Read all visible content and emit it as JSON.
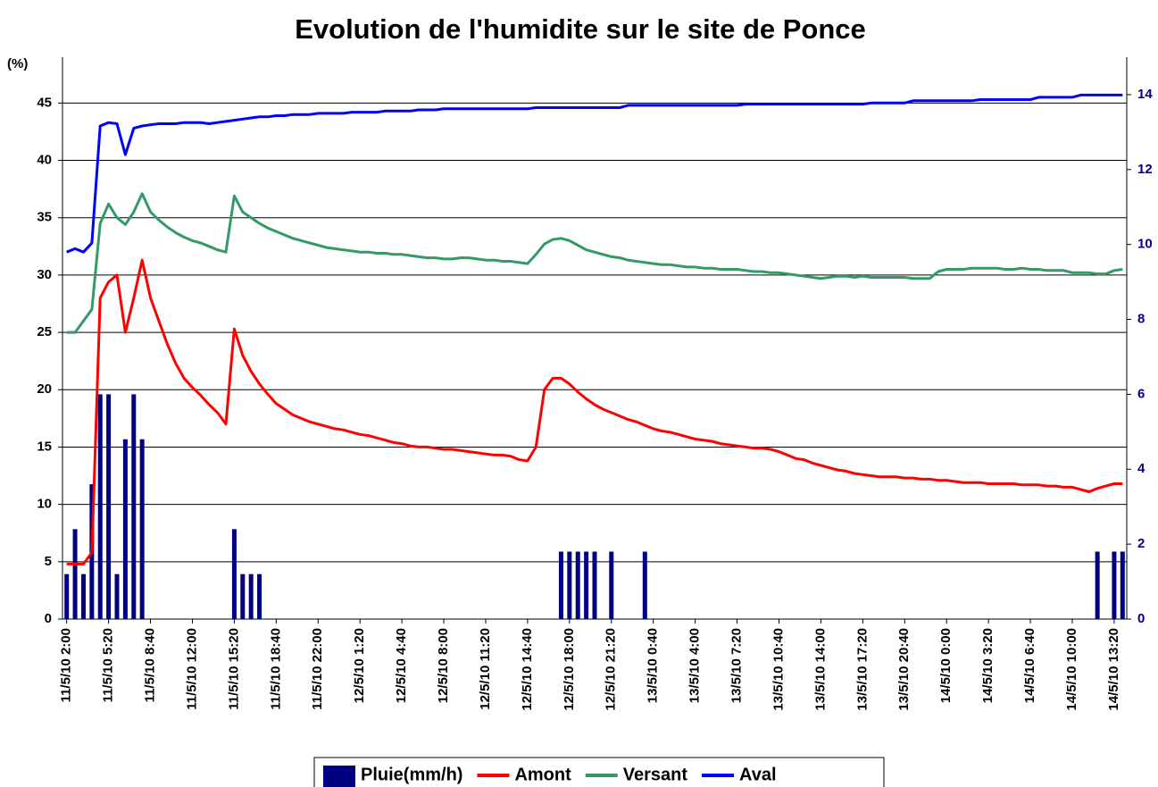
{
  "chart_data": {
    "type": "line",
    "title": "Evolution de l'humidite sur le site de Ponce",
    "y_label": "(%)",
    "categories": [
      "11/5/10 2:00",
      null,
      null,
      null,
      null,
      "11/5/10 5:20",
      null,
      null,
      null,
      null,
      "11/5/10 8:40",
      null,
      null,
      null,
      null,
      "11/5/10 12:00",
      null,
      null,
      null,
      null,
      "11/5/10 15:20",
      null,
      null,
      null,
      null,
      "11/5/10 18:40",
      null,
      null,
      null,
      null,
      "11/5/10 22:00",
      null,
      null,
      null,
      null,
      "12/5/10 1:20",
      null,
      null,
      null,
      null,
      "12/5/10 4:40",
      null,
      null,
      null,
      null,
      "12/5/10 8:00",
      null,
      null,
      null,
      null,
      "12/5/10 11:20",
      null,
      null,
      null,
      null,
      "12/5/10 14:40",
      null,
      null,
      null,
      null,
      "12/5/10 18:00",
      null,
      null,
      null,
      null,
      "12/5/10 21:20",
      null,
      null,
      null,
      null,
      "13/5/10 0:40",
      null,
      null,
      null,
      null,
      "13/5/10 4:00",
      null,
      null,
      null,
      null,
      "13/5/10 7:20",
      null,
      null,
      null,
      null,
      "13/5/10 10:40",
      null,
      null,
      null,
      null,
      "13/5/10 14:00",
      null,
      null,
      null,
      null,
      "13/5/10 17:20",
      null,
      null,
      null,
      null,
      "13/5/10 20:40",
      null,
      null,
      null,
      null,
      "14/5/10 0:00",
      null,
      null,
      null,
      null,
      "14/5/10 3:20",
      null,
      null,
      null,
      null,
      "14/5/10 6:40",
      null,
      null,
      null,
      null,
      "14/5/10 10:00",
      null,
      null,
      null,
      null,
      "14/5/10 13:20",
      null
    ],
    "ylim": [
      0,
      49
    ],
    "yticks": [
      0,
      5,
      10,
      15,
      20,
      25,
      30,
      35,
      40,
      45
    ],
    "y2lim": [
      0,
      15
    ],
    "y2ticks": [
      0,
      2,
      4,
      6,
      8,
      10,
      12,
      14
    ],
    "grid": true,
    "legend": "bottom",
    "series": [
      {
        "name": "Pluie(mm/h)",
        "type": "bar",
        "axis": "y2",
        "color": "#000080",
        "values": [
          1.2,
          2.4,
          1.2,
          3.6,
          6,
          6,
          1.2,
          4.8,
          6,
          4.8,
          0,
          0,
          0,
          0,
          0,
          0,
          0,
          0,
          0,
          0,
          2.4,
          1.2,
          1.2,
          1.2,
          0,
          0,
          0,
          0,
          0,
          0,
          0,
          0,
          0,
          0,
          0,
          0,
          0,
          0,
          0,
          0,
          0,
          0,
          0,
          0,
          0,
          0,
          0,
          0,
          0,
          0,
          0,
          0,
          0,
          0,
          0,
          0,
          0,
          0,
          0,
          1.8,
          1.8,
          1.8,
          1.8,
          1.8,
          0,
          1.8,
          0,
          0,
          0,
          1.8,
          0,
          0,
          0,
          0,
          0,
          0,
          0,
          0,
          0,
          0,
          0,
          0,
          0,
          0,
          0,
          0,
          0,
          0,
          0,
          0,
          0,
          0,
          0,
          0,
          0,
          0,
          0,
          0,
          0,
          0,
          0,
          0,
          0,
          0,
          0,
          0,
          0,
          0,
          0,
          0,
          0,
          0,
          0,
          0,
          0,
          0,
          0,
          0,
          0,
          0,
          0,
          0,
          0,
          1.8,
          0,
          1.8,
          1.8
        ]
      },
      {
        "name": "Amont",
        "color": "#ff0000",
        "values": [
          4.8,
          4.8,
          4.8,
          5.8,
          28,
          29.4,
          30,
          25,
          28,
          31.3,
          28,
          26,
          24,
          22.3,
          21,
          20.2,
          19.5,
          18.7,
          18,
          17,
          25.3,
          23,
          21.6,
          20.5,
          19.6,
          18.8,
          18.3,
          17.8,
          17.5,
          17.2,
          17,
          16.8,
          16.6,
          16.5,
          16.3,
          16.1,
          16,
          15.8,
          15.6,
          15.4,
          15.3,
          15.1,
          15,
          15,
          14.9,
          14.8,
          14.8,
          14.7,
          14.6,
          14.5,
          14.4,
          14.3,
          14.3,
          14.2,
          13.9,
          13.8,
          15,
          20,
          21,
          21,
          20.5,
          19.8,
          19.2,
          18.7,
          18.3,
          18,
          17.7,
          17.4,
          17.2,
          16.9,
          16.6,
          16.4,
          16.3,
          16.1,
          15.9,
          15.7,
          15.6,
          15.5,
          15.3,
          15.2,
          15.1,
          15,
          14.9,
          14.9,
          14.8,
          14.6,
          14.3,
          14,
          13.9,
          13.6,
          13.4,
          13.2,
          13,
          12.9,
          12.7,
          12.6,
          12.5,
          12.4,
          12.4,
          12.4,
          12.3,
          12.3,
          12.2,
          12.2,
          12.1,
          12.1,
          12,
          11.9,
          11.9,
          11.9,
          11.8,
          11.8,
          11.8,
          11.8,
          11.7,
          11.7,
          11.7,
          11.6,
          11.6,
          11.5,
          11.5,
          11.3,
          11.1,
          11.4,
          11.6,
          11.8,
          11.8
        ]
      },
      {
        "name": "Versant",
        "color": "#339966",
        "values": [
          25,
          25,
          26,
          27,
          34.5,
          36.2,
          35,
          34.4,
          35.5,
          37.1,
          35.5,
          34.8,
          34.2,
          33.7,
          33.3,
          33,
          32.8,
          32.5,
          32.2,
          32,
          36.9,
          35.5,
          35,
          34.5,
          34.1,
          33.8,
          33.5,
          33.2,
          33,
          32.8,
          32.6,
          32.4,
          32.3,
          32.2,
          32.1,
          32,
          32,
          31.9,
          31.9,
          31.8,
          31.8,
          31.7,
          31.6,
          31.5,
          31.5,
          31.4,
          31.4,
          31.5,
          31.5,
          31.4,
          31.3,
          31.3,
          31.2,
          31.2,
          31.1,
          31,
          31.8,
          32.7,
          33.1,
          33.2,
          33,
          32.6,
          32.2,
          32,
          31.8,
          31.6,
          31.5,
          31.3,
          31.2,
          31.1,
          31,
          30.9,
          30.9,
          30.8,
          30.7,
          30.7,
          30.6,
          30.6,
          30.5,
          30.5,
          30.5,
          30.4,
          30.3,
          30.3,
          30.2,
          30.2,
          30.1,
          30,
          29.9,
          29.8,
          29.7,
          29.8,
          29.9,
          29.9,
          29.8,
          29.9,
          29.8,
          29.8,
          29.8,
          29.8,
          29.8,
          29.7,
          29.7,
          29.7,
          30.3,
          30.5,
          30.5,
          30.5,
          30.6,
          30.6,
          30.6,
          30.6,
          30.5,
          30.5,
          30.6,
          30.5,
          30.5,
          30.4,
          30.4,
          30.4,
          30.2,
          30.2,
          30.2,
          30.1,
          30.1,
          30.4,
          30.5
        ]
      },
      {
        "name": "Aval",
        "color": "#0000ff",
        "values": [
          32,
          32.3,
          32,
          32.8,
          43,
          43.3,
          43.2,
          40.5,
          42.8,
          43,
          43.1,
          43.2,
          43.2,
          43.2,
          43.3,
          43.3,
          43.3,
          43.2,
          43.3,
          43.4,
          43.5,
          43.6,
          43.7,
          43.8,
          43.8,
          43.9,
          43.9,
          44,
          44,
          44,
          44.1,
          44.1,
          44.1,
          44.1,
          44.2,
          44.2,
          44.2,
          44.2,
          44.3,
          44.3,
          44.3,
          44.3,
          44.4,
          44.4,
          44.4,
          44.5,
          44.5,
          44.5,
          44.5,
          44.5,
          44.5,
          44.5,
          44.5,
          44.5,
          44.5,
          44.5,
          44.6,
          44.6,
          44.6,
          44.6,
          44.6,
          44.6,
          44.6,
          44.6,
          44.6,
          44.6,
          44.6,
          44.8,
          44.8,
          44.8,
          44.8,
          44.8,
          44.8,
          44.8,
          44.8,
          44.8,
          44.8,
          44.8,
          44.8,
          44.8,
          44.8,
          44.9,
          44.9,
          44.9,
          44.9,
          44.9,
          44.9,
          44.9,
          44.9,
          44.9,
          44.9,
          44.9,
          44.9,
          44.9,
          44.9,
          44.9,
          45,
          45,
          45,
          45,
          45,
          45.2,
          45.2,
          45.2,
          45.2,
          45.2,
          45.2,
          45.2,
          45.2,
          45.3,
          45.3,
          45.3,
          45.3,
          45.3,
          45.3,
          45.3,
          45.5,
          45.5,
          45.5,
          45.5,
          45.5,
          45.7,
          45.7,
          45.7,
          45.7,
          45.7,
          45.7
        ]
      }
    ]
  }
}
